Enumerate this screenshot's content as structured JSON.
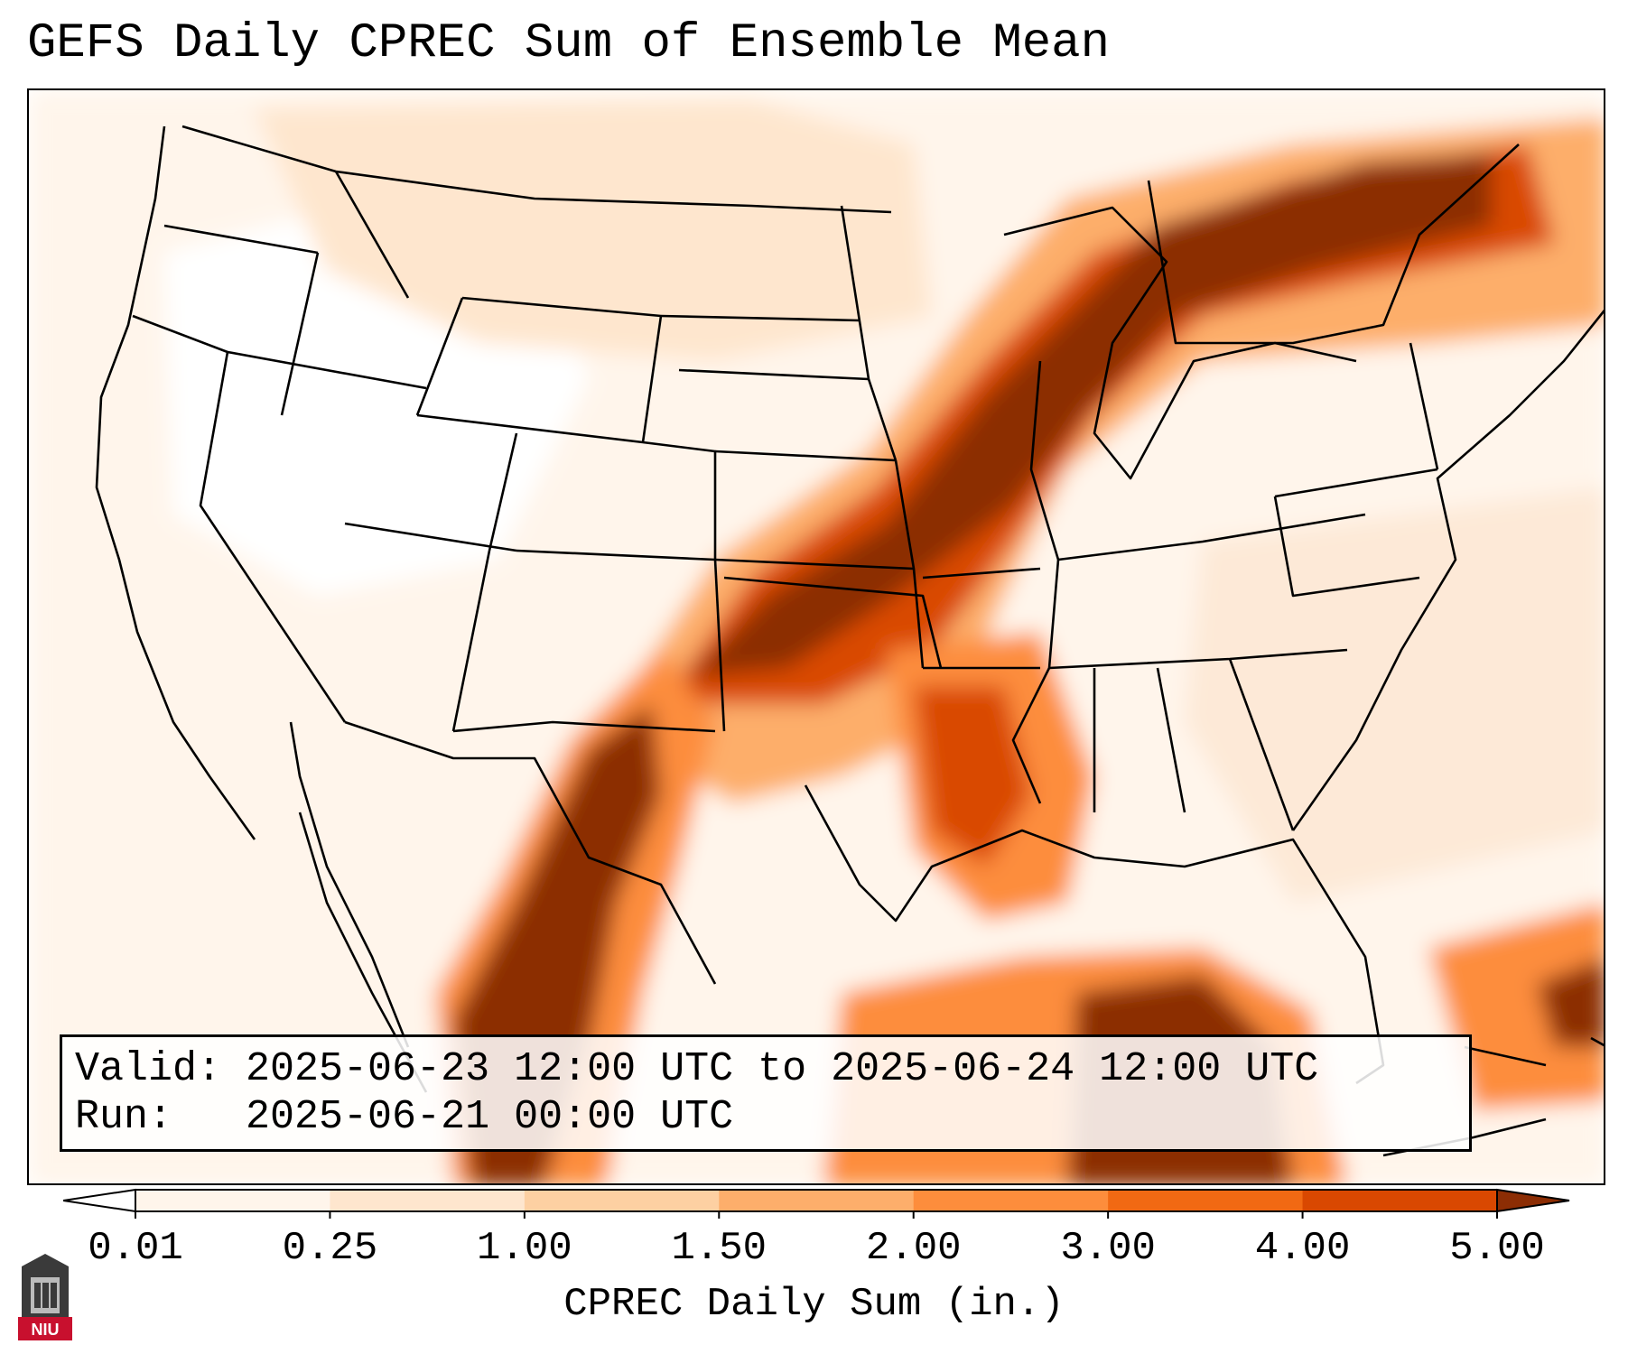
{
  "title": "GEFS Daily CPREC Sum of Ensemble Mean",
  "map": {
    "region": "Contiguous United States",
    "variable": "CPREC",
    "colors": {
      "bins": [
        "#fff5eb",
        "#fee6ce",
        "#fdd0a2",
        "#fdae6b",
        "#fd8d3c",
        "#f16913",
        "#d94801",
        "#a63603",
        "#8c2d04"
      ],
      "border": "#000000",
      "background": "#ffffff"
    }
  },
  "legend": {
    "valid_line": "Valid: 2025-06-23 12:00 UTC to 2025-06-24 12:00 UTC",
    "run_line": "Run:   2025-06-21 00:00 UTC"
  },
  "colorbar": {
    "ticks": [
      "0.01",
      "0.25",
      "1.00",
      "1.50",
      "2.00",
      "3.00",
      "4.00",
      "5.00"
    ],
    "label": "CPREC Daily Sum (in.)"
  },
  "logo": {
    "text": "NIU"
  }
}
